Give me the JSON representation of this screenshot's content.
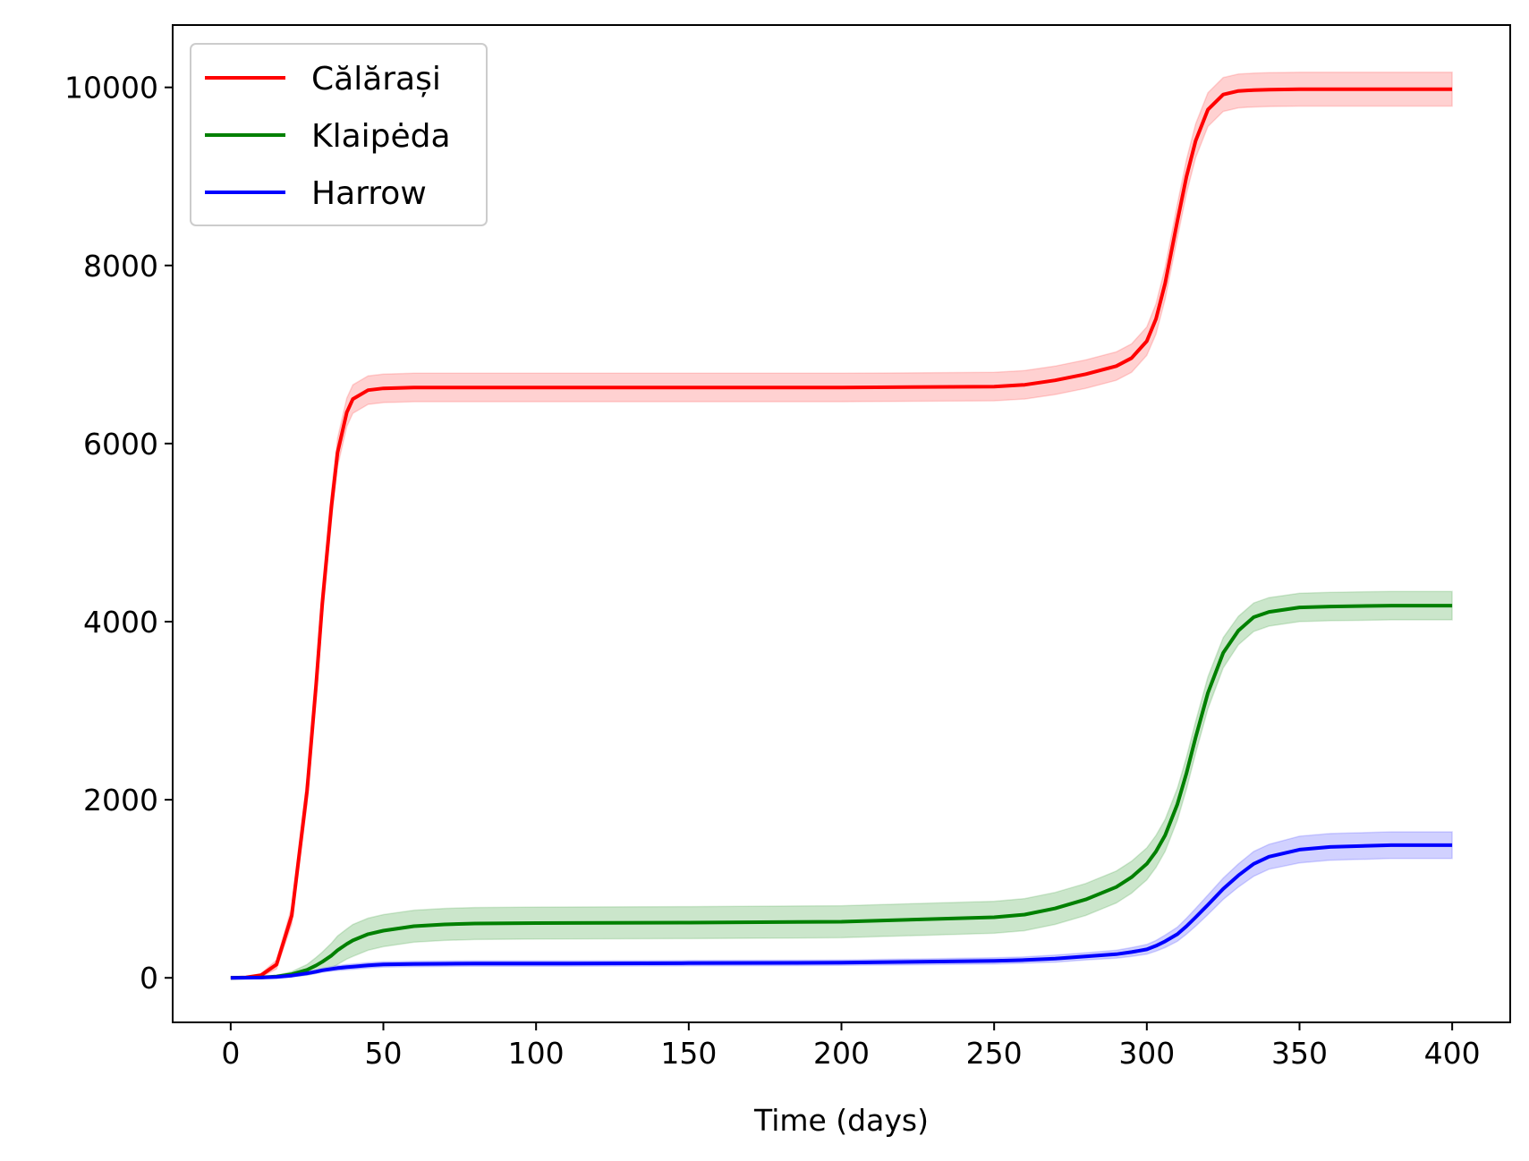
{
  "chart_data": {
    "type": "line",
    "title": "",
    "xlabel": "Time (days)",
    "ylabel": "",
    "xlim": [
      -19,
      419
    ],
    "ylim": [
      -500,
      10700
    ],
    "xticks": [
      0,
      50,
      100,
      150,
      200,
      250,
      300,
      350,
      400
    ],
    "yticks": [
      0,
      2000,
      4000,
      6000,
      8000,
      10000
    ],
    "grid": false,
    "legend_position": "top-left",
    "x": [
      0,
      5,
      10,
      15,
      20,
      25,
      28,
      30,
      33,
      35,
      38,
      40,
      45,
      50,
      60,
      70,
      80,
      100,
      150,
      200,
      250,
      260,
      270,
      280,
      290,
      295,
      300,
      303,
      306,
      310,
      313,
      316,
      320,
      325,
      330,
      335,
      340,
      350,
      360,
      380,
      400
    ],
    "series": [
      {
        "name": "Călărași",
        "color": "#ff0000",
        "band_color": "#ffb3b3",
        "values": [
          0,
          5,
          30,
          150,
          700,
          2100,
          3300,
          4200,
          5300,
          5900,
          6350,
          6500,
          6600,
          6620,
          6630,
          6630,
          6630,
          6630,
          6630,
          6630,
          6640,
          6660,
          6710,
          6780,
          6870,
          6960,
          7150,
          7400,
          7800,
          8500,
          9000,
          9400,
          9750,
          9920,
          9960,
          9970,
          9975,
          9980,
          9980,
          9980,
          9980
        ],
        "band": [
          0,
          5,
          20,
          50,
          100,
          150,
          160,
          160,
          160,
          160,
          160,
          160,
          160,
          160,
          160,
          160,
          160,
          160,
          160,
          160,
          160,
          160,
          160,
          160,
          160,
          160,
          160,
          170,
          180,
          190,
          190,
          190,
          190,
          190,
          190,
          190,
          190,
          190,
          190,
          190,
          190
        ]
      },
      {
        "name": "Klaipėda",
        "color": "#008000",
        "band_color": "#a8d5a8",
        "values": [
          0,
          2,
          5,
          15,
          40,
          90,
          140,
          180,
          250,
          310,
          380,
          420,
          490,
          530,
          580,
          600,
          610,
          615,
          620,
          630,
          680,
          710,
          780,
          880,
          1020,
          1130,
          1280,
          1420,
          1600,
          1950,
          2300,
          2700,
          3200,
          3650,
          3900,
          4050,
          4110,
          4160,
          4170,
          4180,
          4180
        ],
        "band": [
          0,
          2,
          5,
          15,
          30,
          60,
          90,
          110,
          140,
          160,
          170,
          180,
          180,
          180,
          180,
          180,
          180,
          180,
          180,
          180,
          180,
          180,
          180,
          180,
          180,
          180,
          180,
          180,
          180,
          180,
          180,
          180,
          180,
          170,
          160,
          160,
          160,
          160,
          160,
          160,
          160
        ]
      },
      {
        "name": "Harrow",
        "color": "#0000ff",
        "band_color": "#b3b3ff",
        "values": [
          0,
          1,
          3,
          10,
          25,
          50,
          70,
          85,
          100,
          110,
          120,
          125,
          140,
          150,
          155,
          158,
          160,
          160,
          165,
          170,
          190,
          200,
          215,
          240,
          265,
          290,
          320,
          360,
          410,
          490,
          580,
          680,
          820,
          1000,
          1150,
          1280,
          1360,
          1440,
          1470,
          1490,
          1490
        ],
        "band": [
          0,
          1,
          3,
          8,
          12,
          18,
          20,
          22,
          25,
          28,
          30,
          30,
          30,
          30,
          30,
          30,
          30,
          30,
          30,
          30,
          35,
          35,
          40,
          40,
          45,
          50,
          55,
          60,
          70,
          80,
          90,
          100,
          110,
          120,
          130,
          140,
          140,
          150,
          150,
          150,
          150
        ]
      }
    ]
  }
}
